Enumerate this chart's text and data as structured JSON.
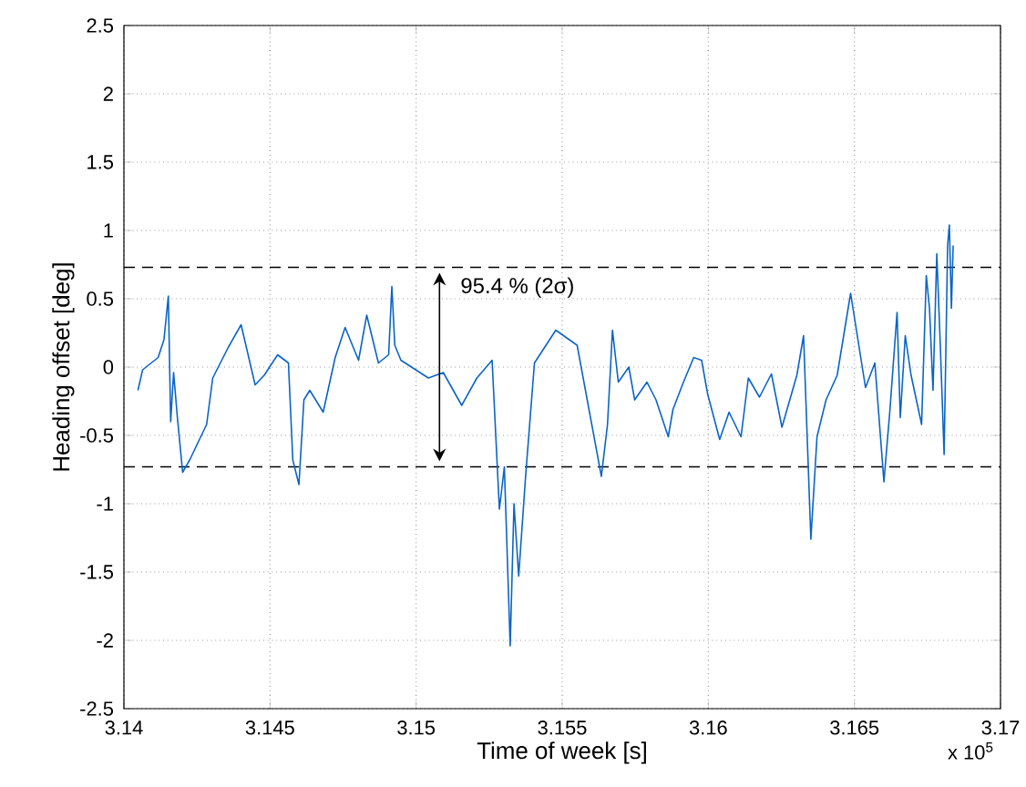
{
  "chart_data": {
    "type": "line",
    "xlabel": "Time of week [s]",
    "ylabel": "Heading offset [deg]",
    "series": [
      {
        "color": "#0a64c8",
        "x": [
          3.14048,
          3.14064,
          3.14117,
          3.14137,
          3.14152,
          3.1416,
          3.1417,
          3.14183,
          3.14201,
          3.14225,
          3.14283,
          3.14304,
          3.14356,
          3.14401,
          3.14449,
          3.1448,
          3.14526,
          3.14563,
          3.14578,
          3.14599,
          3.14616,
          3.14636,
          3.14682,
          3.14723,
          3.14757,
          3.14803,
          3.14831,
          3.14871,
          3.14906,
          3.14917,
          3.14927,
          3.14948,
          3.15042,
          3.15093,
          3.15156,
          3.15208,
          3.1526,
          3.15285,
          3.15302,
          3.15322,
          3.15335,
          3.15351,
          3.15374,
          3.15405,
          3.15478,
          3.15551,
          3.15634,
          3.15655,
          3.15672,
          3.15692,
          3.15728,
          3.15748,
          3.1579,
          3.15821,
          3.15863,
          3.15879,
          3.15915,
          3.1595,
          3.15977,
          3.15998,
          3.16039,
          3.16071,
          3.16112,
          3.16137,
          3.16175,
          3.16216,
          3.16252,
          3.16303,
          3.16326,
          3.16351,
          3.16372,
          3.16403,
          3.16441,
          3.16487,
          3.16538,
          3.1657,
          3.16601,
          3.16621,
          3.16646,
          3.16657,
          3.16674,
          3.16694,
          3.1673,
          3.16746,
          3.16757,
          3.16769,
          3.16782,
          3.16794,
          3.16807,
          3.16819,
          3.16825,
          3.16832,
          3.16838
        ],
        "values": [
          -0.17,
          -0.02,
          0.07,
          0.2,
          0.52,
          -0.4,
          -0.04,
          -0.37,
          -0.77,
          -0.68,
          -0.42,
          -0.08,
          0.14,
          0.31,
          -0.13,
          -0.06,
          0.09,
          0.03,
          -0.68,
          -0.86,
          -0.24,
          -0.17,
          -0.33,
          0.07,
          0.29,
          0.05,
          0.38,
          0.03,
          0.09,
          0.59,
          0.16,
          0.05,
          -0.08,
          -0.04,
          -0.28,
          -0.08,
          0.05,
          -1.04,
          -0.73,
          -2.04,
          -1.0,
          -1.53,
          -0.82,
          0.03,
          0.27,
          0.16,
          -0.8,
          -0.42,
          0.27,
          -0.11,
          0.0,
          -0.24,
          -0.11,
          -0.24,
          -0.51,
          -0.31,
          -0.11,
          0.07,
          0.05,
          -0.2,
          -0.53,
          -0.33,
          -0.51,
          -0.08,
          -0.22,
          -0.05,
          -0.44,
          -0.06,
          0.23,
          -1.26,
          -0.51,
          -0.24,
          -0.06,
          0.54,
          -0.15,
          0.03,
          -0.84,
          -0.33,
          0.4,
          -0.37,
          0.23,
          -0.06,
          -0.42,
          0.67,
          0.43,
          -0.17,
          0.83,
          0.16,
          -0.64,
          0.89,
          1.04,
          0.43,
          0.89
        ]
      }
    ],
    "xlim": [
      3.14,
      3.17
    ],
    "xticks": [
      3.14,
      3.145,
      3.15,
      3.155,
      3.16,
      3.165,
      3.17
    ],
    "ylim": [
      -2.5,
      2.5
    ],
    "yticks": [
      -2.5,
      -2,
      -1.5,
      -1,
      -0.5,
      0,
      0.5,
      1,
      1.5,
      2,
      2.5
    ],
    "ref_lines": [
      {
        "axis": "y",
        "value": 0.73,
        "color": "#000000",
        "line_style": "dashed"
      },
      {
        "axis": "y",
        "value": -0.73,
        "color": "#000000",
        "line_style": "dashed"
      }
    ],
    "annotations": [
      "95.4 % (2σ)",
      "x 10$^{5}$"
    ],
    "grid": true,
    "marker": "none",
    "line_style": "solid"
  }
}
